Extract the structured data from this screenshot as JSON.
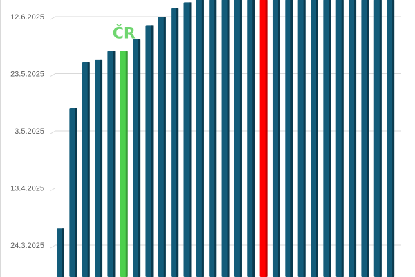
{
  "chart_data": {
    "type": "bar",
    "orientation": "vertical",
    "value_type": "date",
    "title": "",
    "xlabel": "",
    "ylabel": "",
    "ylim": [
      "13.3.2025",
      "18.6.2025"
    ],
    "yticks": [
      "24.3.2025",
      "13.4.2025",
      "3.5.2025",
      "23.5.2025",
      "12.6.2025"
    ],
    "grid": true,
    "values": [
      "30.3.2025",
      "11.5.2025",
      "27.5.2025",
      "28.5.2025",
      "31.5.2025",
      "31.5.2025",
      "4.6.2025",
      "9.6.2025",
      "12.6.2025",
      "15.6.2025",
      "17.6.2025",
      "18.6.2025",
      "18.6.2025",
      "18.6.2025",
      "18.6.2025",
      "18.6.2025",
      "18.6.2025",
      "18.6.2025",
      "18.6.2025",
      "18.6.2025",
      "18.6.2025",
      "18.6.2025",
      "18.6.2025",
      "18.6.2025",
      "18.6.2025",
      "18.6.2025",
      "18.6.2025"
    ],
    "highlight": [
      {
        "index": 5,
        "color": "#4cd04c",
        "label": "ČR"
      },
      {
        "index": 16,
        "color": "#ff0000"
      }
    ],
    "annotations": [
      {
        "text": "ČR",
        "bar_index": 5,
        "color": "#6fd66f"
      }
    ],
    "colors": {
      "bar": "#135c7a",
      "bar_side": "#0b3a4e",
      "grid": "#d9d9d9",
      "axis_text": "#595959"
    }
  }
}
